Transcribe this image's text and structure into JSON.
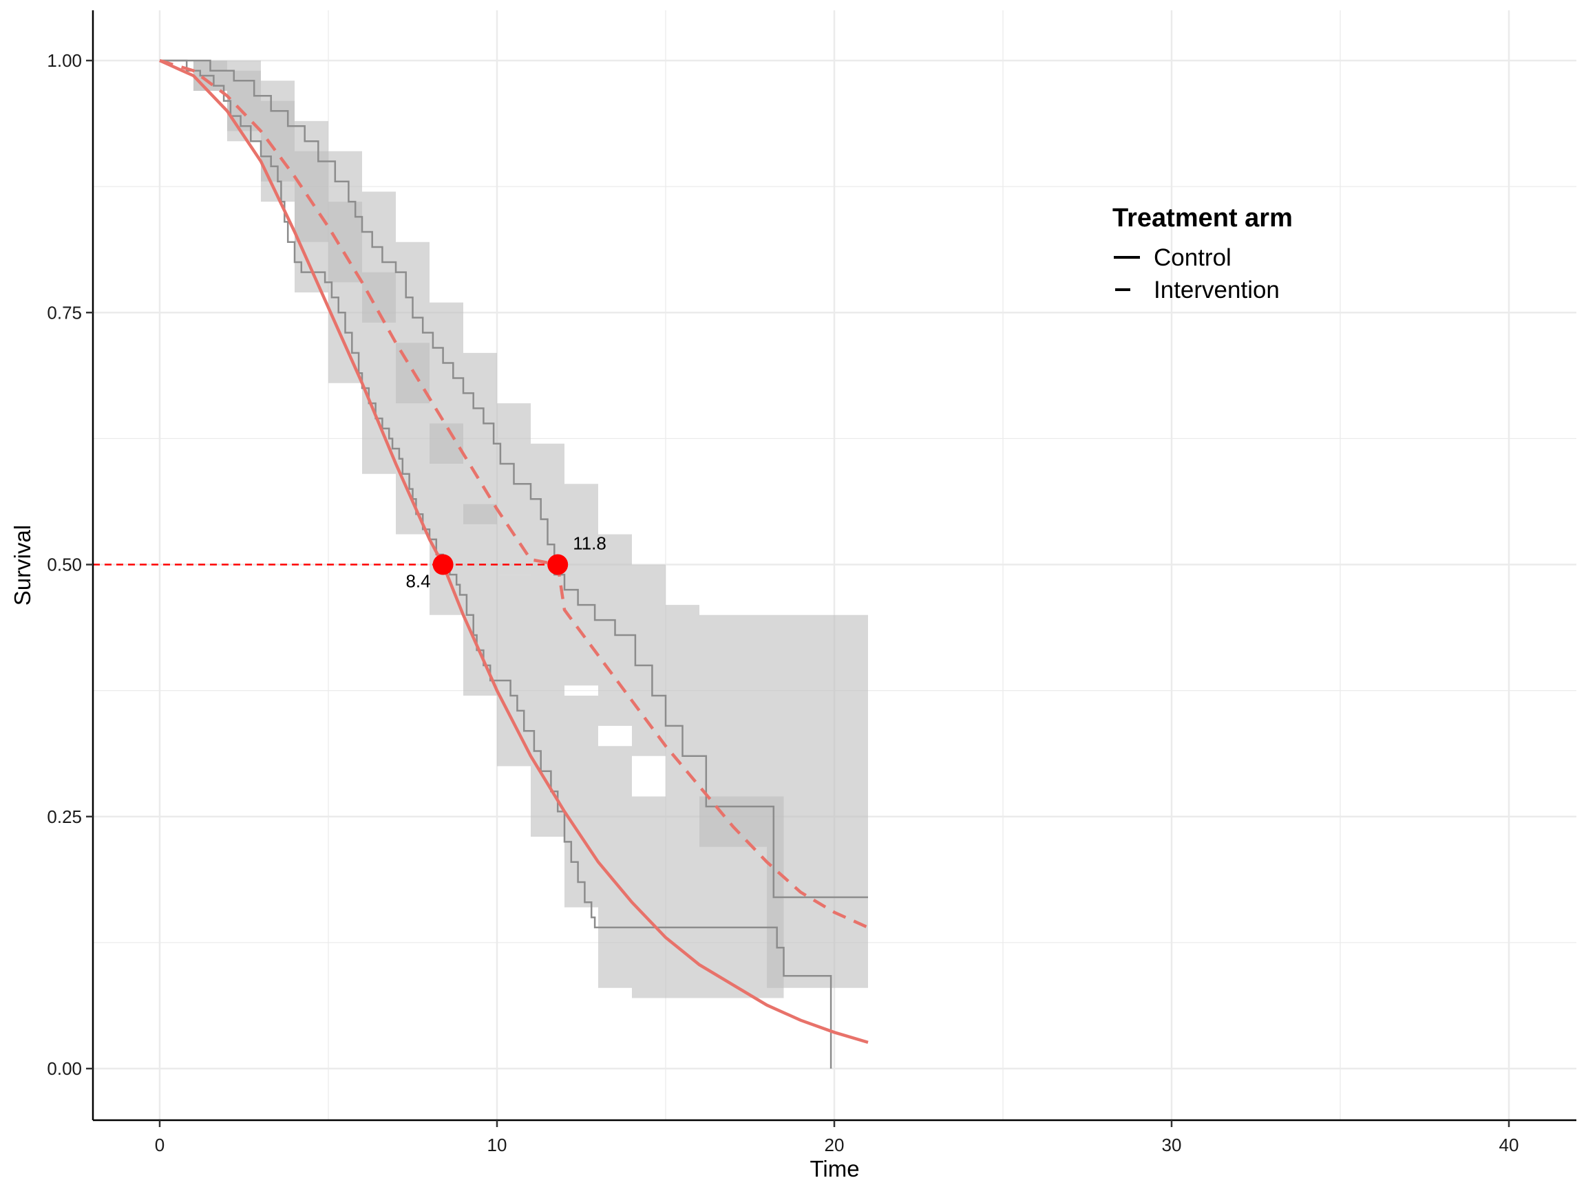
{
  "chart_data": {
    "type": "line",
    "xlabel": "Time",
    "ylabel": "Survival",
    "xlim": [
      -2,
      42
    ],
    "ylim": [
      -0.05,
      1.05
    ],
    "x_ticks": [
      0,
      10,
      20,
      30,
      40
    ],
    "x_tick_labels": [
      "0",
      "10",
      "20",
      "30",
      "40"
    ],
    "y_ticks": [
      0,
      0.25,
      0.5,
      0.75,
      1.0
    ],
    "y_tick_labels": [
      "0.00",
      "0.25",
      "0.50",
      "0.75",
      "1.00"
    ],
    "grid": true,
    "legend": {
      "title": "Treatment arm",
      "position": "top-right",
      "entries": [
        {
          "label": "Control",
          "linetype": "solid"
        },
        {
          "label": "Intervention",
          "linetype": "dashed"
        }
      ]
    },
    "colors": {
      "fitted": "#E8726A",
      "km": "#8C8C8C",
      "ribbon": "#BEBEBE",
      "median": "#FF0000",
      "grid": "#EBEBEB"
    },
    "median_reference_y": 0.5,
    "series": [
      {
        "name": "Control",
        "linetype": "solid",
        "km_steps": [
          [
            0,
            1.0
          ],
          [
            0.8,
            0.99
          ],
          [
            1.2,
            0.985
          ],
          [
            1.6,
            0.975
          ],
          [
            1.9,
            0.96
          ],
          [
            2.1,
            0.945
          ],
          [
            2.4,
            0.935
          ],
          [
            2.7,
            0.92
          ],
          [
            3.0,
            0.905
          ],
          [
            3.3,
            0.895
          ],
          [
            3.5,
            0.88
          ],
          [
            3.6,
            0.86
          ],
          [
            3.7,
            0.84
          ],
          [
            3.8,
            0.82
          ],
          [
            4.0,
            0.8
          ],
          [
            4.2,
            0.79
          ],
          [
            4.9,
            0.78
          ],
          [
            5.1,
            0.765
          ],
          [
            5.3,
            0.75
          ],
          [
            5.5,
            0.73
          ],
          [
            5.7,
            0.71
          ],
          [
            5.9,
            0.69
          ],
          [
            6.0,
            0.675
          ],
          [
            6.2,
            0.66
          ],
          [
            6.4,
            0.645
          ],
          [
            6.6,
            0.635
          ],
          [
            6.8,
            0.625
          ],
          [
            6.9,
            0.615
          ],
          [
            7.1,
            0.605
          ],
          [
            7.2,
            0.59
          ],
          [
            7.4,
            0.575
          ],
          [
            7.5,
            0.565
          ],
          [
            7.6,
            0.55
          ],
          [
            7.8,
            0.535
          ],
          [
            8.0,
            0.525
          ],
          [
            8.2,
            0.51
          ],
          [
            8.4,
            0.5
          ],
          [
            8.6,
            0.49
          ],
          [
            8.8,
            0.48
          ],
          [
            8.9,
            0.47
          ],
          [
            9.1,
            0.45
          ],
          [
            9.3,
            0.43
          ],
          [
            9.4,
            0.415
          ],
          [
            9.6,
            0.4
          ],
          [
            9.8,
            0.385
          ],
          [
            10.4,
            0.37
          ],
          [
            10.6,
            0.355
          ],
          [
            10.8,
            0.335
          ],
          [
            11.1,
            0.315
          ],
          [
            11.3,
            0.295
          ],
          [
            11.6,
            0.275
          ],
          [
            11.8,
            0.255
          ],
          [
            12.0,
            0.225
          ],
          [
            12.2,
            0.205
          ],
          [
            12.4,
            0.185
          ],
          [
            12.6,
            0.165
          ],
          [
            12.8,
            0.15
          ],
          [
            12.9,
            0.14
          ],
          [
            18.3,
            0.12
          ],
          [
            18.5,
            0.092
          ],
          [
            19.9,
            0.0
          ]
        ],
        "fitted": [
          [
            0,
            1.0
          ],
          [
            1,
            0.985
          ],
          [
            2,
            0.95
          ],
          [
            3,
            0.9
          ],
          [
            4,
            0.83
          ],
          [
            5,
            0.755
          ],
          [
            6,
            0.68
          ],
          [
            7,
            0.6
          ],
          [
            8,
            0.525
          ],
          [
            8.4,
            0.5
          ],
          [
            9,
            0.45
          ],
          [
            10,
            0.375
          ],
          [
            11,
            0.31
          ],
          [
            12,
            0.255
          ],
          [
            13,
            0.205
          ],
          [
            14,
            0.165
          ],
          [
            15,
            0.13
          ],
          [
            16,
            0.103
          ],
          [
            17,
            0.083
          ],
          [
            18,
            0.063
          ],
          [
            19,
            0.048
          ],
          [
            20,
            0.036
          ],
          [
            21,
            0.026
          ]
        ],
        "ci": [
          [
            0,
            1.0,
            1.0
          ],
          [
            1,
            1.0,
            0.97
          ],
          [
            2,
            0.99,
            0.92
          ],
          [
            3,
            0.96,
            0.86
          ],
          [
            4,
            0.91,
            0.77
          ],
          [
            5,
            0.86,
            0.68
          ],
          [
            6,
            0.79,
            0.59
          ],
          [
            7,
            0.72,
            0.53
          ],
          [
            8,
            0.64,
            0.45
          ],
          [
            9,
            0.56,
            0.37
          ],
          [
            10,
            0.49,
            0.3
          ],
          [
            11,
            0.43,
            0.23
          ],
          [
            12,
            0.37,
            0.16
          ],
          [
            13,
            0.32,
            0.08
          ],
          [
            14,
            0.27,
            0.07
          ],
          [
            18.5,
            0.26,
            0.03
          ]
        ],
        "median": 8.4,
        "median_label": "8.4"
      },
      {
        "name": "Intervention",
        "linetype": "dashed",
        "km_steps": [
          [
            0,
            1.0
          ],
          [
            1.5,
            0.99
          ],
          [
            2.2,
            0.98
          ],
          [
            2.8,
            0.965
          ],
          [
            3.3,
            0.95
          ],
          [
            3.8,
            0.935
          ],
          [
            4.3,
            0.92
          ],
          [
            4.7,
            0.9
          ],
          [
            5.2,
            0.88
          ],
          [
            5.6,
            0.86
          ],
          [
            5.8,
            0.845
          ],
          [
            6.0,
            0.83
          ],
          [
            6.3,
            0.815
          ],
          [
            6.6,
            0.8
          ],
          [
            7.0,
            0.79
          ],
          [
            7.3,
            0.765
          ],
          [
            7.5,
            0.745
          ],
          [
            7.8,
            0.73
          ],
          [
            8.1,
            0.715
          ],
          [
            8.4,
            0.7
          ],
          [
            8.7,
            0.685
          ],
          [
            9.0,
            0.67
          ],
          [
            9.3,
            0.655
          ],
          [
            9.6,
            0.64
          ],
          [
            9.9,
            0.62
          ],
          [
            10.1,
            0.6
          ],
          [
            10.5,
            0.58
          ],
          [
            11.0,
            0.565
          ],
          [
            11.3,
            0.545
          ],
          [
            11.5,
            0.52
          ],
          [
            11.7,
            0.49
          ],
          [
            12.0,
            0.475
          ],
          [
            12.4,
            0.46
          ],
          [
            12.9,
            0.445
          ],
          [
            13.5,
            0.43
          ],
          [
            14.1,
            0.4
          ],
          [
            14.6,
            0.37
          ],
          [
            15.0,
            0.34
          ],
          [
            15.5,
            0.31
          ],
          [
            16.2,
            0.26
          ],
          [
            18.2,
            0.17
          ],
          [
            21.0,
            0.17
          ]
        ],
        "fitted": [
          [
            0,
            1.0
          ],
          [
            1,
            0.99
          ],
          [
            2,
            0.965
          ],
          [
            3,
            0.93
          ],
          [
            4,
            0.885
          ],
          [
            5,
            0.835
          ],
          [
            6,
            0.78
          ],
          [
            7,
            0.72
          ],
          [
            8,
            0.665
          ],
          [
            9,
            0.61
          ],
          [
            10,
            0.555
          ],
          [
            11,
            0.505
          ],
          [
            11.8,
            0.5
          ],
          [
            12,
            0.455
          ],
          [
            13,
            0.41
          ],
          [
            14,
            0.365
          ],
          [
            15,
            0.32
          ],
          [
            16,
            0.28
          ],
          [
            17,
            0.24
          ],
          [
            18,
            0.205
          ],
          [
            19,
            0.175
          ],
          [
            20,
            0.155
          ],
          [
            21,
            0.14
          ]
        ],
        "ci": [
          [
            0,
            1.0,
            1.0
          ],
          [
            1,
            1.0,
            0.97
          ],
          [
            2,
            1.0,
            0.93
          ],
          [
            3,
            0.98,
            0.88
          ],
          [
            4,
            0.94,
            0.82
          ],
          [
            5,
            0.91,
            0.78
          ],
          [
            6,
            0.87,
            0.74
          ],
          [
            7,
            0.82,
            0.66
          ],
          [
            8,
            0.76,
            0.6
          ],
          [
            9,
            0.71,
            0.54
          ],
          [
            10,
            0.66,
            0.49
          ],
          [
            11,
            0.62,
            0.43
          ],
          [
            12,
            0.58,
            0.38
          ],
          [
            13,
            0.53,
            0.34
          ],
          [
            14,
            0.5,
            0.31
          ],
          [
            15,
            0.46,
            0.27
          ],
          [
            16,
            0.45,
            0.22
          ],
          [
            18,
            0.45,
            0.08
          ],
          [
            21,
            0.455,
            0.066
          ]
        ],
        "median": 11.8,
        "median_label": "11.8"
      }
    ]
  }
}
